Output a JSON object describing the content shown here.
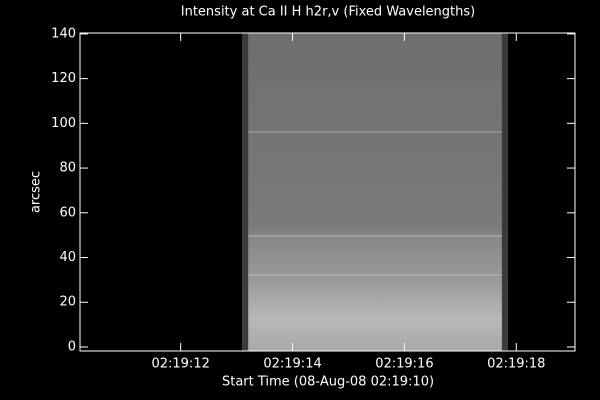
{
  "chart_data": {
    "type": "image",
    "title": "Intensity at Ca II H h2r,v (Fixed Wavelengths)",
    "x_label": "Start Time (08-Aug-08 02:19:10)",
    "y_label": "arcsec",
    "xlim": [
      0.2,
      9.05
    ],
    "ylim": [
      -1.8,
      140.4
    ],
    "xticks": [
      {
        "value": 2,
        "label": "02:19:12"
      },
      {
        "value": 4,
        "label": "02:19:14"
      },
      {
        "value": 6,
        "label": "02:19:16"
      },
      {
        "value": 8,
        "label": "02:19:18"
      }
    ],
    "yticks": [
      0,
      20,
      40,
      60,
      80,
      100,
      120,
      140
    ],
    "image_x": [
      3.1,
      7.85
    ]
  }
}
